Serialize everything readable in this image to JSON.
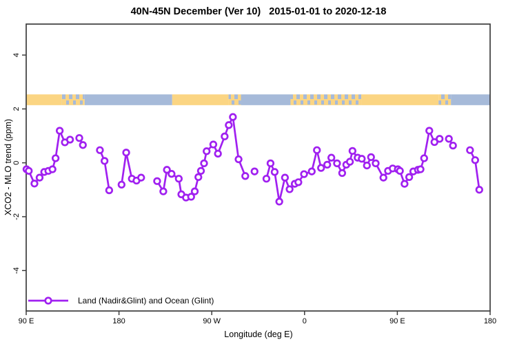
{
  "chart_data": {
    "type": "line",
    "title": "40N-45N December (Ver 10)   2015-01-01 to 2020-12-18",
    "xlabel": "Longitude (deg E)",
    "ylabel": "XCO2 - MLO trend (ppm)",
    "xlim": [
      90,
      540
    ],
    "ylim": [
      -5.5,
      5.15
    ],
    "grid": false,
    "x_ticks": [
      {
        "value": 90,
        "label": "90 E"
      },
      {
        "value": 180,
        "label": "180"
      },
      {
        "value": 270,
        "label": "90 W"
      },
      {
        "value": 360,
        "label": "0"
      },
      {
        "value": 450,
        "label": "90 E"
      },
      {
        "value": 540,
        "label": "180"
      }
    ],
    "y_ticks": [
      {
        "value": -4,
        "label": "-4"
      },
      {
        "value": -2,
        "label": "-2"
      },
      {
        "value": 0,
        "label": "0"
      },
      {
        "value": 2,
        "label": "2"
      },
      {
        "value": 4,
        "label": "4"
      }
    ],
    "legend": {
      "position": "bottom-left",
      "entries": [
        "Land (Nadir&Glint) and Ocean (Glint)"
      ]
    },
    "series": [
      {
        "name": "Land (Nadir&Glint) and Ocean (Glint)",
        "color": "#A020F0",
        "marker": "open-circle",
        "segments": [
          {
            "x": [
              90.3,
              92.5,
              98.0,
              103.0,
              107.5,
              111.5,
              115.5,
              118.5,
              122.5,
              127.5,
              132.5
            ],
            "y": [
              -0.24,
              -0.3,
              -0.77,
              -0.55,
              -0.34,
              -0.3,
              -0.24,
              0.17,
              1.19,
              0.76,
              0.86
            ]
          },
          {
            "x": [
              141.5,
              145.0
            ],
            "y": [
              0.92,
              0.66
            ]
          },
          {
            "x": [
              161.5,
              166.0,
              170.5
            ],
            "y": [
              0.47,
              0.07,
              -1.02
            ]
          },
          {
            "x": [
              182.5,
              187.0,
              192.5,
              197.0,
              201.5
            ],
            "y": [
              -0.81,
              0.38,
              -0.59,
              -0.66,
              -0.55
            ]
          },
          {
            "x": [
              217.0,
              223.0,
              226.5,
              231.0,
              238.0,
              240.5,
              245.0,
              250.0,
              253.5,
              257.0,
              259.5,
              262.5,
              265.0,
              271.5,
              276.0,
              282.5,
              286.5,
              290.5,
              296.0,
              302.5
            ],
            "y": [
              -0.68,
              -1.06,
              -0.26,
              -0.41,
              -0.59,
              -1.17,
              -1.29,
              -1.26,
              -1.06,
              -0.53,
              -0.3,
              -0.02,
              0.43,
              0.68,
              0.34,
              0.98,
              1.4,
              1.7,
              0.13,
              -0.49
            ]
          },
          {
            "x": [
              311.5
            ],
            "y": [
              -0.32
            ]
          },
          {
            "x": [
              323.0,
              327.0,
              331.0,
              335.5,
              341.0,
              345.5,
              350.5,
              354.0,
              359.5,
              367.0,
              372.0,
              376.0,
              382.0,
              386.0,
              391.5,
              396.5,
              400.5,
              404.0,
              406.5,
              411.5,
              415.5,
              420.5,
              424.5,
              429.0,
              436.5,
              441.0,
              445.5,
              450.5,
              452.5,
              457.0,
              461.5,
              465.5,
              470.0,
              472.5,
              476.0,
              481.0,
              486.0,
              491.0
            ],
            "y": [
              -0.59,
              -0.02,
              -0.34,
              -1.44,
              -0.55,
              -0.98,
              -0.78,
              -0.72,
              -0.42,
              -0.32,
              0.47,
              -0.19,
              -0.07,
              0.19,
              -0.02,
              -0.38,
              -0.07,
              0.04,
              0.44,
              0.19,
              0.15,
              -0.1,
              0.21,
              -0.02,
              -0.55,
              -0.3,
              -0.21,
              -0.24,
              -0.3,
              -0.78,
              -0.53,
              -0.32,
              -0.26,
              -0.24,
              0.17,
              1.19,
              0.77,
              0.89
            ]
          },
          {
            "x": [
              500.0,
              504.0
            ],
            "y": [
              0.89,
              0.64
            ]
          },
          {
            "x": [
              520.5,
              525.5,
              529.5
            ],
            "y": [
              0.47,
              0.1,
              -1.0
            ]
          }
        ]
      }
    ],
    "surface_band": {
      "description": "land/ocean strip along longitude",
      "y_from_ppm": 2.14,
      "y_to_ppm": 2.54,
      "land_color": "#FBD583",
      "ocean_color": "#A6BAD9",
      "segments": [
        {
          "from": 90.0,
          "to": 124.7,
          "type": "land"
        },
        {
          "from": 124.7,
          "to": 146.7,
          "type": "coast"
        },
        {
          "from": 146.7,
          "to": 231.6,
          "type": "ocean"
        },
        {
          "from": 231.6,
          "to": 286.3,
          "type": "land"
        },
        {
          "from": 286.3,
          "to": 298.3,
          "type": "coast"
        },
        {
          "from": 298.3,
          "to": 346.4,
          "type": "ocean"
        },
        {
          "from": 346.4,
          "to": 415.0,
          "type": "coast"
        },
        {
          "from": 415.0,
          "to": 490.0,
          "type": "land"
        },
        {
          "from": 490.0,
          "to": 502.0,
          "type": "coast"
        },
        {
          "from": 502.0,
          "to": 540.0,
          "type": "ocean"
        }
      ]
    },
    "axis_color": "#3c3c3c"
  }
}
